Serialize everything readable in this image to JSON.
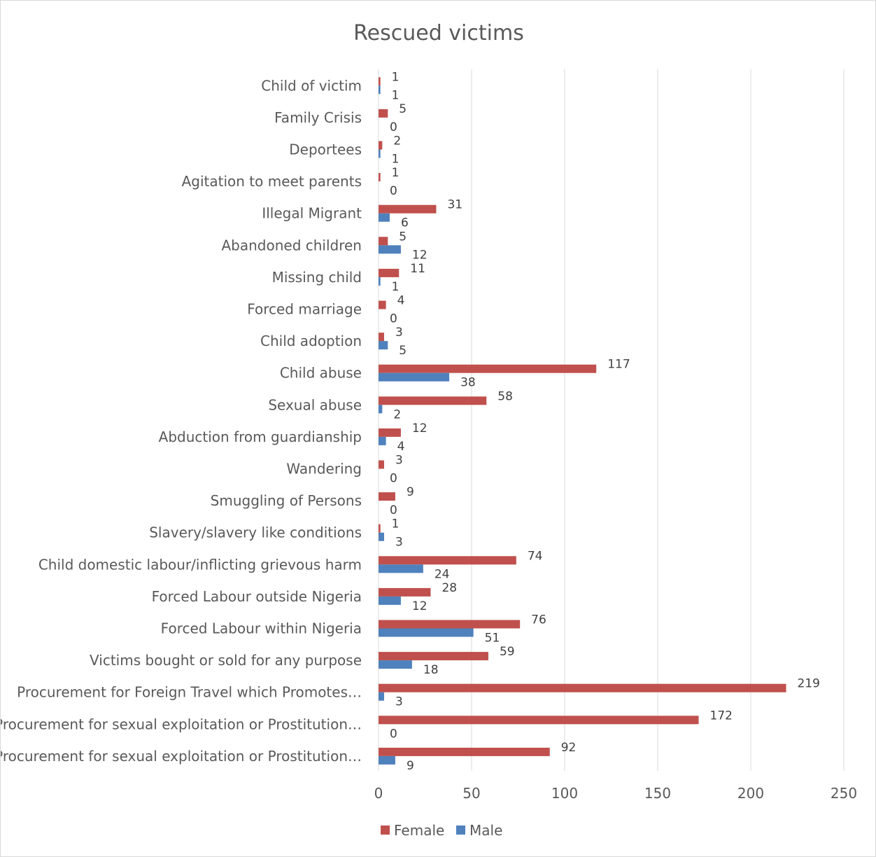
{
  "chart_data": {
    "type": "bar",
    "orientation": "horizontal",
    "title": "Rescued victims",
    "xlabel": "",
    "ylabel": "",
    "xlim": [
      0,
      250
    ],
    "x_ticks": [
      "0",
      "50",
      "100",
      "150",
      "200",
      "250"
    ],
    "grid": true,
    "legend_position": "bottom",
    "categories": [
      "Child of victim",
      "Family Crisis",
      "Deportees",
      "Agitation to meet parents",
      "Illegal Migrant",
      "Abandoned  children",
      "Missing child",
      "Forced marriage",
      "Child adoption",
      "Child abuse",
      "Sexual abuse",
      "Abduction from guardianship",
      "Wandering",
      "Smuggling of Persons",
      "Slavery/slavery like conditions",
      "Child domestic labour/inflicting grievous harm",
      "Forced Labour outside Nigeria",
      "Forced Labour within Nigeria",
      "Victims bought or sold for  any purpose",
      "Procurement for Foreign Travel which Promotes…",
      "Procurement for sexual exploitation or Prostitution…",
      "Procurement for sexual exploitation or Prostitution…"
    ],
    "series": [
      {
        "name": "Female",
        "color": "#c0504d",
        "values": [
          1,
          5,
          2,
          1,
          31,
          5,
          11,
          4,
          3,
          117,
          58,
          12,
          3,
          9,
          1,
          74,
          28,
          76,
          59,
          219,
          172,
          92
        ]
      },
      {
        "name": "Male",
        "color": "#4f81bd",
        "values": [
          1,
          0,
          1,
          0,
          6,
          12,
          1,
          0,
          5,
          38,
          2,
          4,
          0,
          0,
          3,
          24,
          12,
          51,
          18,
          3,
          0,
          9
        ]
      }
    ]
  }
}
